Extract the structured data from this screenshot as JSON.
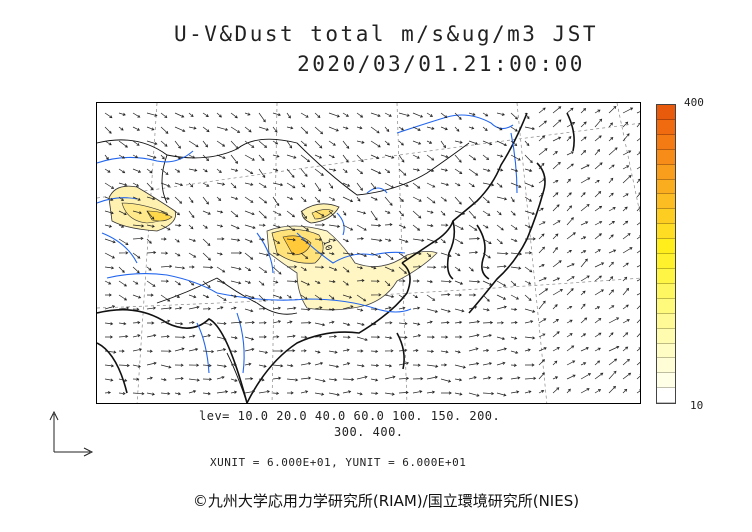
{
  "title": {
    "line1": "U-V&Dust total m/s&ug/m3 JST",
    "line2": "2020/03/01.21:00:00"
  },
  "colorbar": {
    "max_label": "400",
    "min_label": "10",
    "colors": [
      "#e85a0c",
      "#f06a10",
      "#f47b14",
      "#f78c18",
      "#f99d1c",
      "#fbad20",
      "#fcbd22",
      "#fdcd22",
      "#fedd22",
      "#ffee1c",
      "#fff22c",
      "#fff545",
      "#fff762",
      "#fff97c",
      "#fffa96",
      "#fffbaf",
      "#fffcc4",
      "#fffdd6",
      "#fffee6",
      "#ffffff"
    ]
  },
  "levels": {
    "line1": "lev= 10.0 20.0 40.0 60.0 100. 150. 200.",
    "line2": "300. 400."
  },
  "units": "XUNIT = 6.000E+01, YUNIT = 6.000E+01",
  "copyright": "©九州大学応用力学研究所(RIAM)/国立環境研究所(NIES)",
  "contour_label": "10",
  "icons": {
    "vector_field": "wind-arrow-icon",
    "axes": "axis-arrows-icon"
  }
}
